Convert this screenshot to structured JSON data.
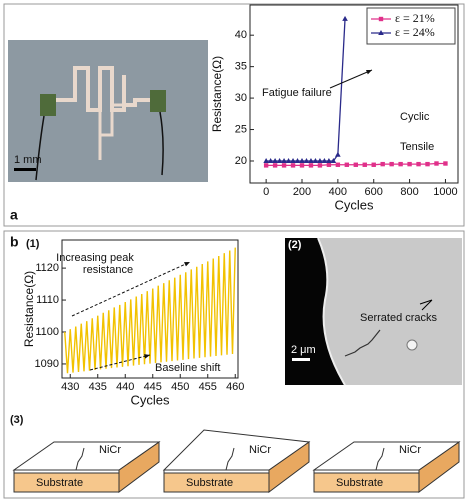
{
  "figure": {
    "panel_a": "a",
    "panel_b": "b",
    "sub_1": "(1)",
    "sub_2": "(2)",
    "sub_3": "(3)",
    "photo_scale": "1 mm",
    "sem_scale": "2 μm",
    "sem_label": "Serrated cracks",
    "film": [
      "NiCr",
      "NiCr",
      "NiCr"
    ],
    "substrate": [
      "Substrate",
      "Substrate",
      "Substrate"
    ]
  },
  "chart_data": [
    {
      "type": "line",
      "xlabel": "Cycles",
      "ylabel": "Resistance(Ω)",
      "xlim": [
        -90,
        1070
      ],
      "ylim": [
        16.5,
        44.8
      ],
      "xticks": [
        0,
        200,
        400,
        600,
        800,
        1000
      ],
      "yticks": [
        20,
        25,
        30,
        35,
        40
      ],
      "legend": "upper right",
      "series": [
        {
          "name": "ε = 21%",
          "color": "#e0308a",
          "marker": "square",
          "x": [
            0,
            50,
            100,
            150,
            200,
            250,
            300,
            350,
            400,
            450,
            500,
            550,
            600,
            650,
            700,
            750,
            800,
            850,
            900,
            950,
            1000
          ],
          "values": [
            19.3,
            19.3,
            19.3,
            19.3,
            19.3,
            19.3,
            19.3,
            19.4,
            19.4,
            19.4,
            19.4,
            19.4,
            19.4,
            19.5,
            19.5,
            19.5,
            19.5,
            19.5,
            19.5,
            19.6,
            19.6
          ]
        },
        {
          "name": "ε = 24%",
          "color": "#2a2a8a",
          "marker": "triangle",
          "x": [
            0,
            25,
            50,
            75,
            100,
            125,
            150,
            175,
            200,
            225,
            250,
            275,
            300,
            325,
            350,
            375,
            400,
            440
          ],
          "values": [
            20,
            20,
            20,
            20,
            20,
            20,
            20,
            20,
            20,
            20,
            20,
            20,
            20,
            20,
            20,
            20,
            21,
            42.6
          ]
        }
      ],
      "annotations": [
        "Fatigue failure",
        "Cyclic",
        "Tensile"
      ]
    },
    {
      "type": "line",
      "xlabel": "Cycles",
      "ylabel": "Resistance(Ω)",
      "xlim": [
        428.5,
        460.5
      ],
      "ylim": [
        1085.6,
        1128.8
      ],
      "xticks": [
        430,
        435,
        440,
        445,
        450,
        455,
        460
      ],
      "yticks": [
        1090,
        1100,
        1110,
        1120
      ],
      "series": [
        {
          "color": "#f2c200",
          "x": [
            429,
            429.5,
            430,
            430.5,
            431,
            431.5,
            432,
            432.5,
            433,
            433.5,
            434,
            434.5,
            435,
            435.5,
            436,
            436.5,
            437,
            437.5,
            438,
            438.5,
            439,
            439.5,
            440,
            440.5,
            441,
            441.5,
            442,
            442.5,
            443,
            443.5,
            444,
            444.5,
            445,
            445.5,
            446,
            446.5,
            447,
            447.5,
            448,
            448.5,
            449,
            449.5,
            450,
            450.5,
            451,
            451.5,
            452,
            452.5,
            453,
            453.5,
            454,
            454.5,
            455,
            455.5,
            456,
            456.5,
            457,
            457.5,
            458,
            458.5,
            459,
            459.5,
            460
          ],
          "values": [
            1100,
            1087.1,
            1100.9,
            1087.3,
            1101.7,
            1087.5,
            1102.6,
            1087.7,
            1103.4,
            1087.9,
            1104.3,
            1088.1,
            1105.1,
            1088.3,
            1106,
            1088.5,
            1106.8,
            1088.7,
            1107.7,
            1088.9,
            1108.5,
            1089.1,
            1109.4,
            1089.3,
            1110.2,
            1089.5,
            1111.1,
            1089.7,
            1111.9,
            1089.9,
            1112.8,
            1090.1,
            1113.6,
            1090.3,
            1114.5,
            1090.5,
            1115.3,
            1090.7,
            1116.2,
            1090.9,
            1117,
            1091.1,
            1117.9,
            1091.3,
            1118.7,
            1091.5,
            1119.6,
            1091.7,
            1120.4,
            1091.9,
            1121.3,
            1092.1,
            1122.1,
            1092.3,
            1123,
            1092.5,
            1123.8,
            1092.7,
            1124.7,
            1092.9,
            1125.5,
            1093.1,
            1126.4
          ]
        }
      ],
      "annotations": [
        "Increasing peak",
        "resistance",
        "Baseline shift"
      ]
    }
  ]
}
